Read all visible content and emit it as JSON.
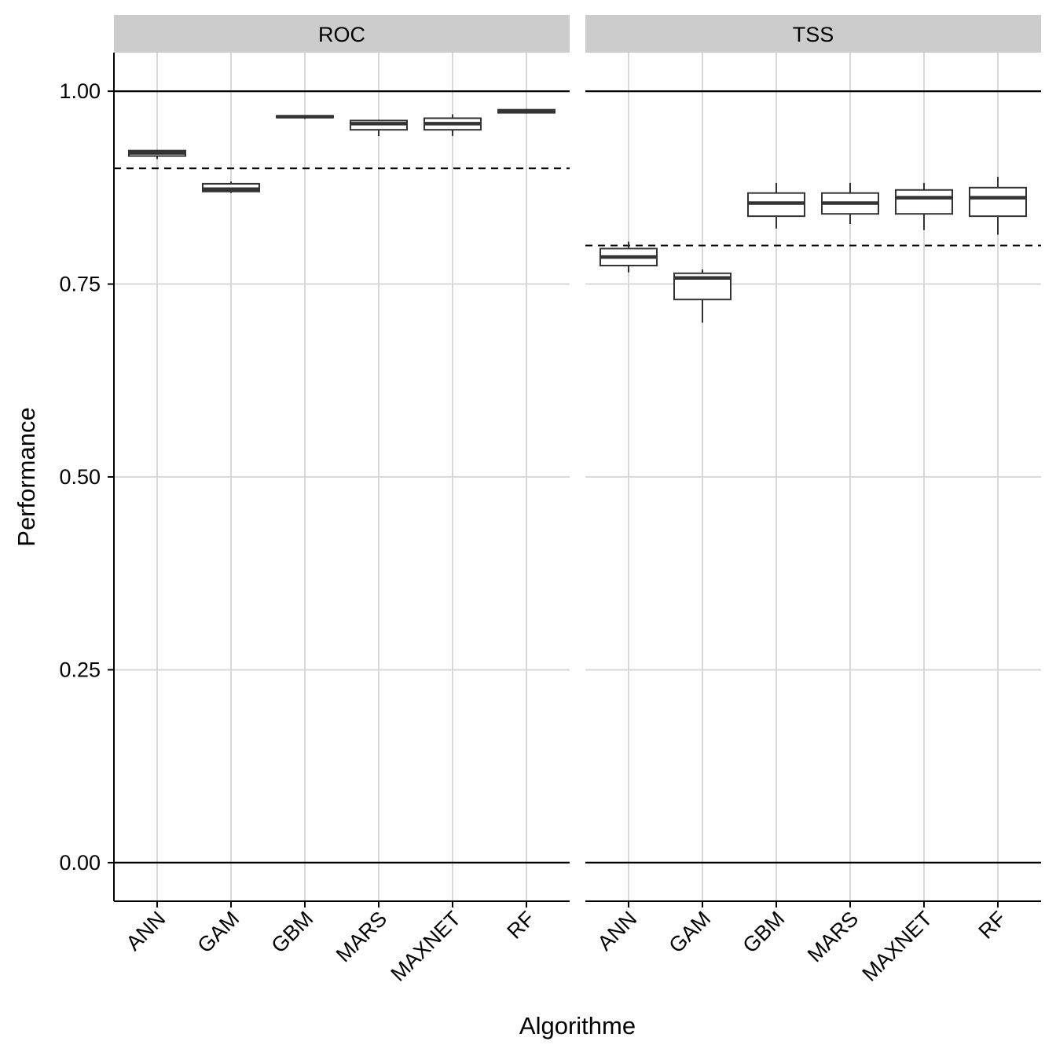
{
  "chart_data": {
    "type": "boxplot",
    "xlabel": "Algorithme",
    "ylabel": "Performance",
    "ylim": [
      -0.05,
      1.05
    ],
    "yticks": [
      0.0,
      0.25,
      0.5,
      0.75,
      1.0
    ],
    "ytick_labels": [
      "0.00",
      "0.25",
      "0.50",
      "0.75",
      "1.00"
    ],
    "categories": [
      "ANN",
      "GAM",
      "GBM",
      "MARS",
      "MAXNET",
      "RF"
    ],
    "reference_lines_solid": [
      0.0,
      1.0
    ],
    "panels": [
      {
        "title": "ROC",
        "threshold": 0.9,
        "boxes": [
          {
            "category": "ANN",
            "whisker_low": 0.912,
            "q1": 0.916,
            "median": 0.92,
            "q3": 0.923,
            "whisker_high": 0.924
          },
          {
            "category": "GAM",
            "whisker_low": 0.868,
            "q1": 0.87,
            "median": 0.873,
            "q3": 0.88,
            "whisker_high": 0.883
          },
          {
            "category": "GBM",
            "whisker_low": 0.964,
            "q1": 0.966,
            "median": 0.967,
            "q3": 0.968,
            "whisker_high": 0.969
          },
          {
            "category": "MARS",
            "whisker_low": 0.942,
            "q1": 0.95,
            "median": 0.958,
            "q3": 0.962,
            "whisker_high": 0.963
          },
          {
            "category": "MAXNET",
            "whisker_low": 0.942,
            "q1": 0.95,
            "median": 0.958,
            "q3": 0.965,
            "whisker_high": 0.97
          },
          {
            "category": "RF",
            "whisker_low": 0.971,
            "q1": 0.972,
            "median": 0.974,
            "q3": 0.976,
            "whisker_high": 0.977
          }
        ]
      },
      {
        "title": "TSS",
        "threshold": 0.8,
        "boxes": [
          {
            "category": "ANN",
            "whisker_low": 0.765,
            "q1": 0.774,
            "median": 0.785,
            "q3": 0.796,
            "whisker_high": 0.805
          },
          {
            "category": "GAM",
            "whisker_low": 0.7,
            "q1": 0.73,
            "median": 0.758,
            "q3": 0.764,
            "whisker_high": 0.769
          },
          {
            "category": "GBM",
            "whisker_low": 0.822,
            "q1": 0.838,
            "median": 0.855,
            "q3": 0.868,
            "whisker_high": 0.881
          },
          {
            "category": "MARS",
            "whisker_low": 0.828,
            "q1": 0.841,
            "median": 0.855,
            "q3": 0.868,
            "whisker_high": 0.881
          },
          {
            "category": "MAXNET",
            "whisker_low": 0.82,
            "q1": 0.841,
            "median": 0.862,
            "q3": 0.872,
            "whisker_high": 0.881
          },
          {
            "category": "RF",
            "whisker_low": 0.814,
            "q1": 0.838,
            "median": 0.862,
            "q3": 0.875,
            "whisker_high": 0.889
          }
        ]
      }
    ],
    "grid": true,
    "legend": "none",
    "colors": {
      "strip_fill": "#cccccc",
      "grid": "#d9d9d9",
      "box_stroke": "#333333",
      "axis": "#000000",
      "text": "#000000"
    }
  }
}
